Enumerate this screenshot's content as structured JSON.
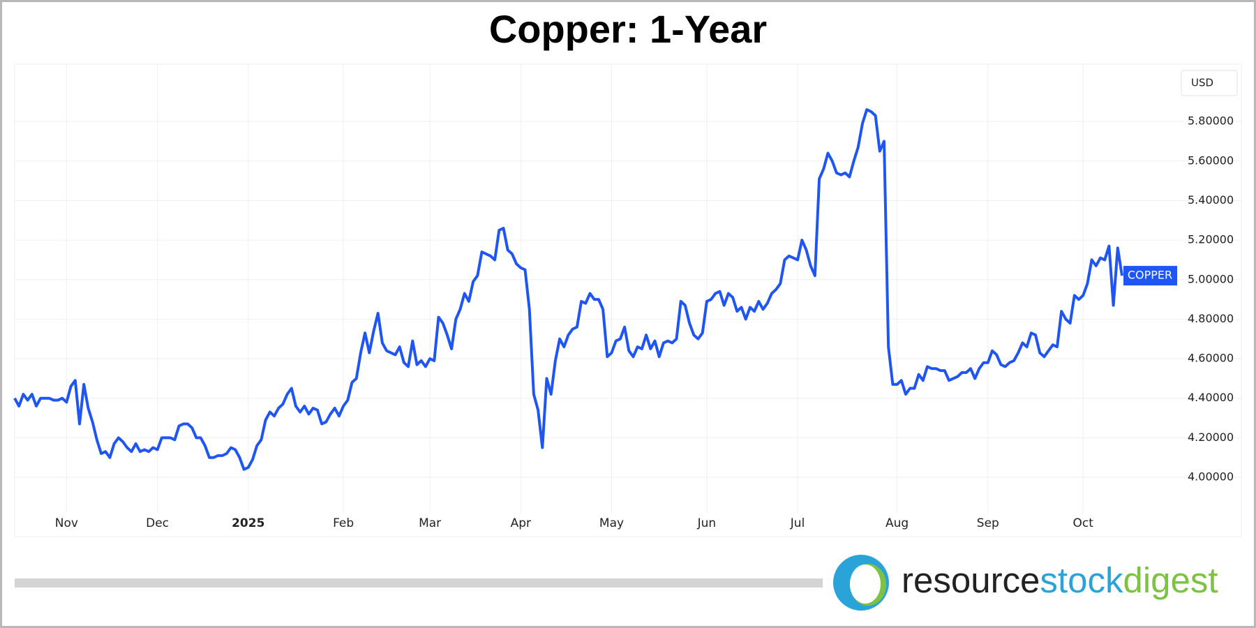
{
  "chart_data": {
    "type": "line",
    "title": "Copper: 1-Year",
    "y_axis_label": "USD",
    "series": [
      {
        "name": "COPPER",
        "color": "#1f55f2",
        "values": [
          4.4,
          4.36,
          4.42,
          4.39,
          4.42,
          4.36,
          4.4,
          4.4,
          4.4,
          4.39,
          4.39,
          4.4,
          4.38,
          4.46,
          4.49,
          4.27,
          4.47,
          4.35,
          4.28,
          4.19,
          4.12,
          4.13,
          4.1,
          4.17,
          4.2,
          4.18,
          4.15,
          4.13,
          4.17,
          4.13,
          4.14,
          4.13,
          4.15,
          4.14,
          4.2,
          4.2,
          4.2,
          4.19,
          4.26,
          4.27,
          4.27,
          4.25,
          4.2,
          4.2,
          4.16,
          4.1,
          4.1,
          4.11,
          4.11,
          4.12,
          4.15,
          4.14,
          4.1,
          4.04,
          4.05,
          4.09,
          4.16,
          4.19,
          4.29,
          4.33,
          4.31,
          4.35,
          4.37,
          4.42,
          4.45,
          4.36,
          4.33,
          4.36,
          4.32,
          4.35,
          4.34,
          4.27,
          4.28,
          4.32,
          4.35,
          4.31,
          4.36,
          4.39,
          4.48,
          4.5,
          4.63,
          4.73,
          4.63,
          4.74,
          4.83,
          4.68,
          4.64,
          4.63,
          4.62,
          4.66,
          4.58,
          4.56,
          4.69,
          4.57,
          4.59,
          4.56,
          4.6,
          4.59,
          4.81,
          4.78,
          4.72,
          4.65,
          4.8,
          4.85,
          4.93,
          4.89,
          4.99,
          5.02,
          5.14,
          5.13,
          5.12,
          5.1,
          5.25,
          5.26,
          5.15,
          5.13,
          5.08,
          5.06,
          5.05,
          4.85,
          4.42,
          4.34,
          4.15,
          4.5,
          4.42,
          4.59,
          4.7,
          4.66,
          4.72,
          4.75,
          4.76,
          4.89,
          4.88,
          4.93,
          4.9,
          4.9,
          4.85,
          4.61,
          4.63,
          4.69,
          4.7,
          4.76,
          4.64,
          4.61,
          4.66,
          4.65,
          4.72,
          4.65,
          4.69,
          4.61,
          4.68,
          4.69,
          4.68,
          4.7,
          4.89,
          4.87,
          4.78,
          4.72,
          4.7,
          4.73,
          4.89,
          4.9,
          4.93,
          4.94,
          4.87,
          4.93,
          4.91,
          4.84,
          4.86,
          4.8,
          4.86,
          4.84,
          4.89,
          4.85,
          4.88,
          4.93,
          4.95,
          4.98,
          5.1,
          5.12,
          5.11,
          5.1,
          5.2,
          5.15,
          5.07,
          5.02,
          5.51,
          5.56,
          5.64,
          5.6,
          5.54,
          5.53,
          5.54,
          5.52,
          5.6,
          5.67,
          5.79,
          5.86,
          5.85,
          5.83,
          5.65,
          5.7,
          4.66,
          4.47,
          4.47,
          4.49,
          4.42,
          4.45,
          4.45,
          4.52,
          4.49,
          4.56,
          4.55,
          4.55,
          4.54,
          4.54,
          4.49,
          4.5,
          4.51,
          4.53,
          4.53,
          4.55,
          4.5,
          4.55,
          4.58,
          4.58,
          4.64,
          4.62,
          4.57,
          4.56,
          4.58,
          4.59,
          4.63,
          4.68,
          4.66,
          4.73,
          4.72,
          4.63,
          4.61,
          4.64,
          4.67,
          4.66,
          4.84,
          4.8,
          4.78,
          4.92,
          4.9,
          4.92,
          4.98,
          5.1,
          5.07,
          5.11,
          5.1,
          5.17,
          4.87,
          5.16,
          5.02
        ]
      }
    ],
    "xlim": [
      0,
      256
    ],
    "xticks": [
      {
        "value": 12,
        "label": "Nov"
      },
      {
        "value": 33,
        "label": "Dec"
      },
      {
        "value": 54,
        "label": "2025",
        "bold": true
      },
      {
        "value": 76,
        "label": "Feb"
      },
      {
        "value": 96,
        "label": "Mar"
      },
      {
        "value": 117,
        "label": "Apr"
      },
      {
        "value": 138,
        "label": "May"
      },
      {
        "value": 160,
        "label": "Jun"
      },
      {
        "value": 181,
        "label": "Jul"
      },
      {
        "value": 204,
        "label": "Aug"
      },
      {
        "value": 225,
        "label": "Sep"
      },
      {
        "value": 247,
        "label": "Oct"
      }
    ],
    "ylim": [
      3.82,
      6.09
    ],
    "yticks": [
      {
        "value": 4.0,
        "label": "4.00000"
      },
      {
        "value": 4.2,
        "label": "4.20000"
      },
      {
        "value": 4.4,
        "label": "4.40000"
      },
      {
        "value": 4.6,
        "label": "4.60000"
      },
      {
        "value": 4.8,
        "label": "4.80000"
      },
      {
        "value": 5.0,
        "label": "5.00000"
      },
      {
        "value": 5.2,
        "label": "5.20000"
      },
      {
        "value": 5.4,
        "label": "5.40000"
      },
      {
        "value": 5.6,
        "label": "5.60000"
      },
      {
        "value": 5.8,
        "label": "5.80000"
      }
    ],
    "grid": true
  },
  "logo": {
    "parts": [
      {
        "text": "resource",
        "color": "#222222"
      },
      {
        "text": "stock",
        "color": "#2aa3d8"
      },
      {
        "text": "digest",
        "color": "#7dc242"
      }
    ]
  }
}
